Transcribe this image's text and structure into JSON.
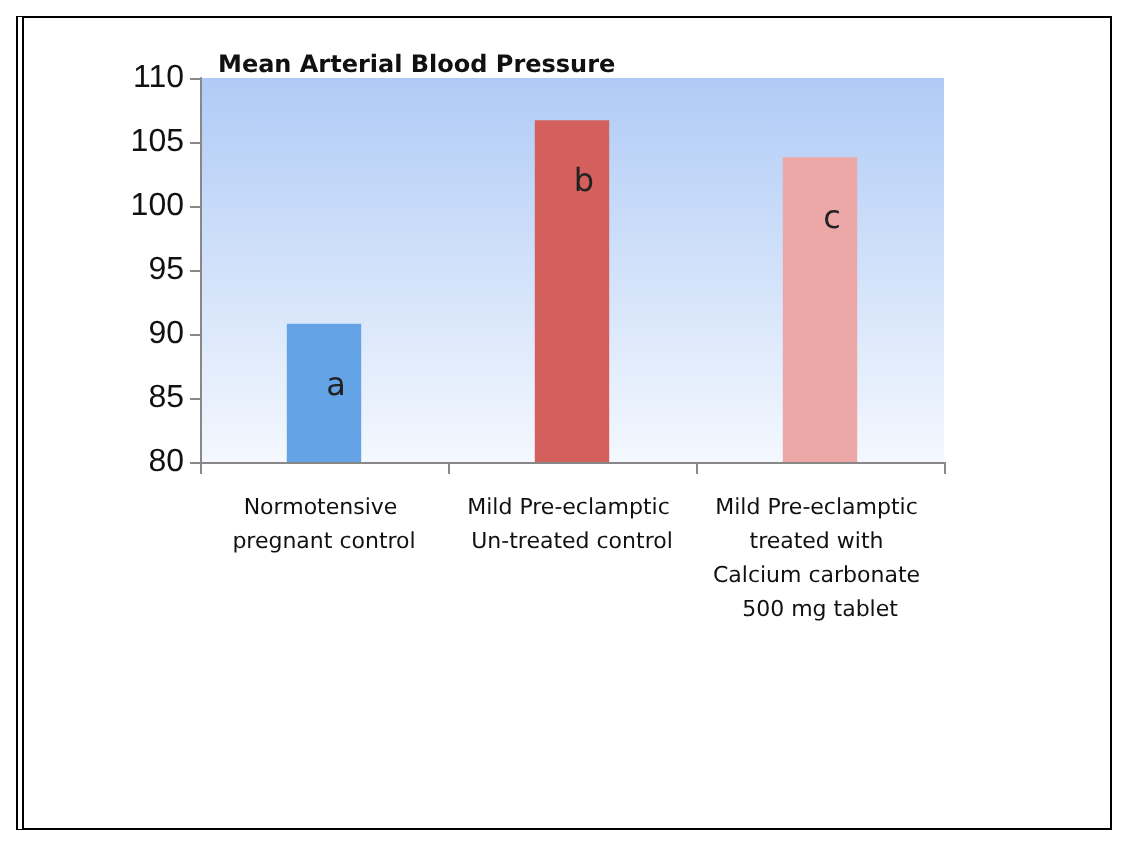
{
  "chart_data": {
    "type": "bar",
    "title": "Mean Arterial Blood Pressure",
    "categories": [
      "Normotensive pregnant control",
      "Mild Pre-eclamptic Un-treated control",
      "Mild Pre-eclamptic treated with Calcium carbonate 500 mg tablet"
    ],
    "values": [
      90.8,
      106.7,
      103.8
    ],
    "colors": [
      "#64a3e6",
      "#d4605e",
      "#eca8a6"
    ],
    "value_labels": [
      "a",
      "b",
      "c"
    ],
    "ylim": [
      80,
      110
    ],
    "yticks": [
      80,
      85,
      90,
      95,
      100,
      105,
      110
    ],
    "grid": false
  }
}
